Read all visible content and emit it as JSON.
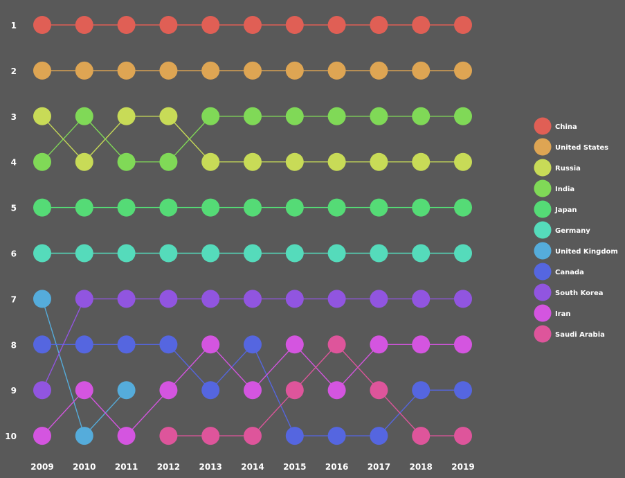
{
  "chart_data": {
    "type": "line",
    "subtype": "bump",
    "title": "",
    "xlabel": "",
    "ylabel": "",
    "x": [
      "2009",
      "2010",
      "2011",
      "2012",
      "2013",
      "2014",
      "2015",
      "2016",
      "2017",
      "2018",
      "2019"
    ],
    "y_ticks": [
      "1",
      "2",
      "3",
      "4",
      "5",
      "6",
      "7",
      "8",
      "9",
      "10"
    ],
    "ylim": [
      1,
      10
    ],
    "y_inverted": true,
    "grid": false,
    "legend_position": "right",
    "background": "#595959",
    "series": [
      {
        "name": "China",
        "color": "#e05f55",
        "ranks": [
          1,
          1,
          1,
          1,
          1,
          1,
          1,
          1,
          1,
          1,
          1
        ]
      },
      {
        "name": "United States",
        "color": "#dea553",
        "ranks": [
          2,
          2,
          2,
          2,
          2,
          2,
          2,
          2,
          2,
          2,
          2
        ]
      },
      {
        "name": "Russia",
        "color": "#c8db57",
        "ranks": [
          3,
          4,
          3,
          3,
          4,
          4,
          4,
          4,
          4,
          4,
          4
        ]
      },
      {
        "name": "India",
        "color": "#80d957",
        "ranks": [
          4,
          3,
          4,
          4,
          3,
          3,
          3,
          3,
          3,
          3,
          3
        ]
      },
      {
        "name": "Japan",
        "color": "#55db76",
        "ranks": [
          5,
          5,
          5,
          5,
          5,
          5,
          5,
          5,
          5,
          5,
          5
        ]
      },
      {
        "name": "Germany",
        "color": "#55dbbb",
        "ranks": [
          6,
          6,
          6,
          6,
          6,
          6,
          6,
          6,
          6,
          6,
          6
        ]
      },
      {
        "name": "United Kingdom",
        "color": "#55acdb",
        "ranks": [
          7,
          10,
          9,
          null,
          null,
          null,
          null,
          null,
          null,
          null,
          null
        ]
      },
      {
        "name": "Canada",
        "color": "#5566e0",
        "ranks": [
          8,
          8,
          8,
          8,
          9,
          8,
          10,
          10,
          10,
          9,
          9
        ]
      },
      {
        "name": "South Korea",
        "color": "#9155e0",
        "ranks": [
          9,
          7,
          7,
          7,
          7,
          7,
          7,
          7,
          7,
          7,
          7
        ]
      },
      {
        "name": "Iran",
        "color": "#d455e0",
        "ranks": [
          10,
          9,
          10,
          9,
          8,
          9,
          8,
          9,
          8,
          8,
          8
        ]
      },
      {
        "name": "Saudi Arabia",
        "color": "#de559b",
        "ranks": [
          null,
          null,
          null,
          10,
          10,
          10,
          9,
          8,
          9,
          10,
          10
        ]
      }
    ]
  }
}
